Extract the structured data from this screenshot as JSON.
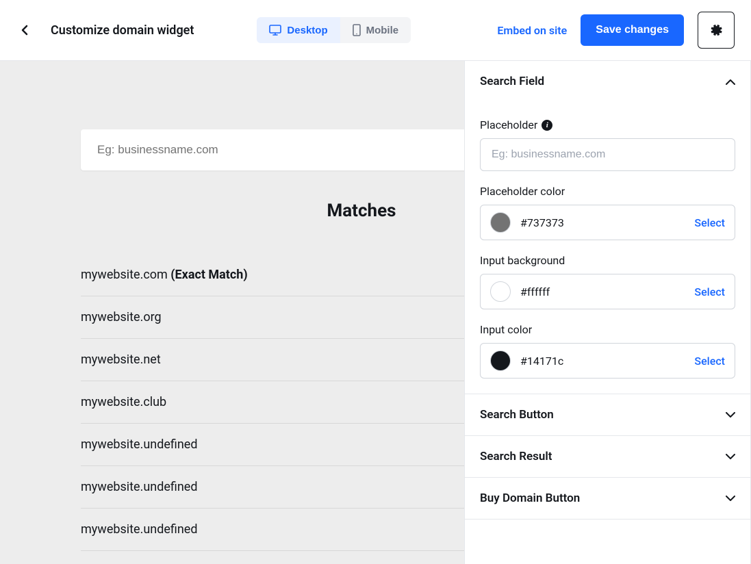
{
  "header": {
    "title": "Customize domain widget",
    "devices": {
      "desktop": "Desktop",
      "mobile": "Mobile"
    },
    "embed_label": "Embed on site",
    "save_label": "Save changes"
  },
  "preview": {
    "search_placeholder": "Eg: businessname.com",
    "search_placeholder_color": "#737373",
    "search_bg_color": "#ffffff",
    "search_text_color": "#14171c",
    "matches_title": "Matches",
    "exact_match_label": "(Exact Match)",
    "results": [
      {
        "domain": "mywebsite.com",
        "exact": true
      },
      {
        "domain": "mywebsite.org",
        "exact": false
      },
      {
        "domain": "mywebsite.net",
        "exact": false
      },
      {
        "domain": "mywebsite.club",
        "exact": false
      },
      {
        "domain": "mywebsite.undefined",
        "exact": false
      },
      {
        "domain": "mywebsite.undefined",
        "exact": false
      },
      {
        "domain": "mywebsite.undefined",
        "exact": false
      }
    ]
  },
  "sidebar": {
    "sections": [
      {
        "title": "Search Field",
        "expanded": true
      },
      {
        "title": "Search Button",
        "expanded": false
      },
      {
        "title": "Search Result",
        "expanded": false
      },
      {
        "title": "Buy Domain Button",
        "expanded": false
      }
    ],
    "search_field": {
      "placeholder_label": "Placeholder",
      "placeholder_value": "Eg: businessname.com",
      "placeholder_color_label": "Placeholder color",
      "placeholder_color_value": "#737373",
      "input_bg_label": "Input background",
      "input_bg_value": "#ffffff",
      "input_color_label": "Input color",
      "input_color_value": "#14171c",
      "select_label": "Select"
    }
  },
  "colors": {
    "primary": "#1967ff",
    "text": "#14171c",
    "border": "#d1d5db",
    "preview_bg": "#ededed"
  }
}
